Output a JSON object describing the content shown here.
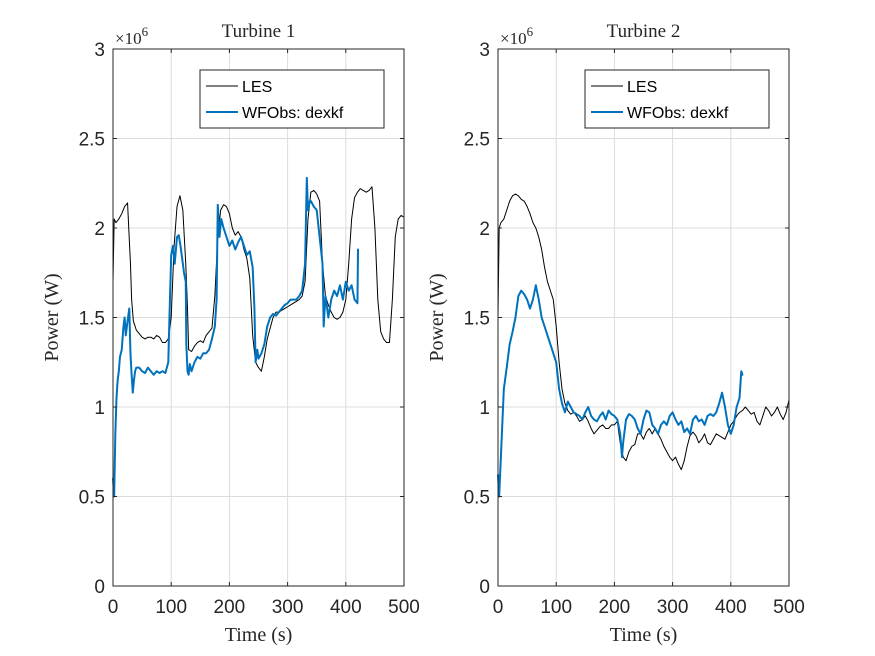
{
  "colors": {
    "les": "#000000",
    "wfobs": "#0072BD",
    "grid": "#dcdcdc",
    "axes": "#262626"
  },
  "chart_data": [
    {
      "type": "line",
      "title": "Turbine 1",
      "xlabel": "Time (s)",
      "ylabel": "Power (W)",
      "y_exponent_label": "×10",
      "y_exponent_power": "6",
      "xlim": [
        0,
        500
      ],
      "ylim": [
        0,
        3
      ],
      "xticks": [
        "0",
        "100",
        "200",
        "300",
        "400",
        "500"
      ],
      "yticks": [
        "0",
        "0.5",
        "1",
        "1.5",
        "2",
        "2.5",
        "3"
      ],
      "grid": true,
      "legend_position": "top-right",
      "series": [
        {
          "name": "LES",
          "x": [
            0,
            2,
            5,
            10,
            15,
            20,
            25,
            30,
            32,
            35,
            40,
            45,
            50,
            55,
            60,
            65,
            70,
            75,
            80,
            85,
            90,
            95,
            100,
            105,
            110,
            115,
            120,
            125,
            128,
            130,
            135,
            140,
            145,
            150,
            155,
            160,
            165,
            170,
            175,
            180,
            185,
            190,
            195,
            200,
            205,
            210,
            215,
            220,
            225,
            230,
            235,
            240,
            245,
            250,
            255,
            260,
            265,
            270,
            275,
            280,
            285,
            290,
            295,
            300,
            305,
            310,
            315,
            320,
            325,
            330,
            335,
            340,
            345,
            350,
            355,
            360,
            365,
            370,
            375,
            380,
            385,
            390,
            395,
            400,
            405,
            410,
            415,
            420,
            425,
            430,
            435,
            440,
            445,
            450,
            455,
            460,
            465,
            470,
            475,
            480,
            485,
            490,
            495,
            500
          ],
          "y": [
            1.7,
            2.05,
            2.03,
            2.05,
            2.08,
            2.12,
            2.14,
            1.8,
            1.6,
            1.48,
            1.43,
            1.41,
            1.39,
            1.38,
            1.39,
            1.39,
            1.38,
            1.4,
            1.39,
            1.36,
            1.36,
            1.38,
            1.5,
            1.9,
            2.12,
            2.18,
            2.1,
            1.8,
            1.55,
            1.32,
            1.31,
            1.34,
            1.36,
            1.37,
            1.36,
            1.4,
            1.42,
            1.44,
            1.62,
            1.95,
            2.1,
            2.13,
            2.12,
            2.08,
            2.0,
            1.96,
            1.98,
            1.95,
            1.88,
            1.83,
            1.72,
            1.4,
            1.25,
            1.22,
            1.2,
            1.28,
            1.38,
            1.44,
            1.5,
            1.53,
            1.53,
            1.54,
            1.55,
            1.56,
            1.57,
            1.58,
            1.59,
            1.6,
            1.62,
            1.7,
            2.05,
            2.2,
            2.21,
            2.19,
            2.15,
            1.8,
            1.62,
            1.57,
            1.53,
            1.5,
            1.49,
            1.5,
            1.53,
            1.6,
            1.8,
            2.05,
            2.17,
            2.2,
            2.22,
            2.21,
            2.2,
            2.21,
            2.23,
            2.0,
            1.6,
            1.42,
            1.38,
            1.36,
            1.36,
            1.6,
            1.95,
            2.05,
            2.07,
            2.06
          ]
        },
        {
          "name": "WFObs: dexkf",
          "x": [
            0,
            2,
            4,
            6,
            8,
            10,
            12,
            15,
            18,
            20,
            22,
            25,
            28,
            30,
            32,
            34,
            36,
            38,
            40,
            45,
            50,
            55,
            60,
            65,
            70,
            75,
            80,
            85,
            90,
            95,
            97,
            100,
            103,
            106,
            110,
            113,
            116,
            120,
            122,
            125,
            126,
            128,
            130,
            132,
            135,
            140,
            145,
            150,
            155,
            160,
            165,
            170,
            175,
            178,
            180,
            183,
            186,
            190,
            195,
            200,
            205,
            210,
            215,
            220,
            225,
            230,
            235,
            240,
            243,
            245,
            248,
            250,
            255,
            260,
            265,
            270,
            275,
            280,
            285,
            290,
            295,
            300,
            305,
            310,
            315,
            320,
            325,
            330,
            333,
            335,
            338,
            340,
            345,
            350,
            355,
            360,
            362,
            365,
            368,
            370,
            375,
            380,
            385,
            390,
            395,
            400,
            405,
            410,
            415,
            420,
            421
          ],
          "y": [
            0.6,
            0.5,
            0.85,
            1.05,
            1.15,
            1.2,
            1.28,
            1.32,
            1.45,
            1.5,
            1.4,
            1.48,
            1.55,
            1.3,
            1.18,
            1.08,
            1.15,
            1.2,
            1.22,
            1.22,
            1.2,
            1.19,
            1.22,
            1.2,
            1.18,
            1.2,
            1.19,
            1.2,
            1.19,
            1.25,
            1.5,
            1.85,
            1.9,
            1.8,
            1.95,
            1.96,
            1.9,
            1.8,
            1.75,
            1.7,
            1.35,
            1.2,
            1.18,
            1.24,
            1.2,
            1.25,
            1.28,
            1.27,
            1.3,
            1.3,
            1.32,
            1.38,
            1.45,
            1.6,
            2.13,
            1.95,
            2.05,
            2.0,
            1.95,
            1.9,
            1.93,
            1.88,
            1.92,
            1.95,
            1.9,
            1.85,
            1.87,
            1.78,
            1.55,
            1.25,
            1.32,
            1.27,
            1.3,
            1.35,
            1.45,
            1.5,
            1.52,
            1.51,
            1.53,
            1.55,
            1.57,
            1.58,
            1.6,
            1.6,
            1.6,
            1.62,
            1.65,
            1.8,
            2.28,
            2.1,
            2.15,
            2.15,
            2.12,
            2.1,
            1.95,
            1.8,
            1.45,
            1.62,
            1.55,
            1.5,
            1.6,
            1.65,
            1.62,
            1.68,
            1.6,
            1.7,
            1.65,
            1.68,
            1.6,
            1.58,
            1.88
          ]
        }
      ]
    },
    {
      "type": "line",
      "title": "Turbine 2",
      "xlabel": "Time (s)",
      "ylabel": "Power (W)",
      "y_exponent_label": "×10",
      "y_exponent_power": "6",
      "xlim": [
        0,
        500
      ],
      "ylim": [
        0,
        3
      ],
      "xticks": [
        "0",
        "100",
        "200",
        "300",
        "400",
        "500"
      ],
      "yticks": [
        "0",
        "0.5",
        "1",
        "1.5",
        "2",
        "2.5",
        "3"
      ],
      "grid": true,
      "legend_position": "top-right",
      "series": [
        {
          "name": "LES",
          "x": [
            0,
            2,
            5,
            10,
            15,
            20,
            25,
            30,
            35,
            40,
            45,
            50,
            55,
            60,
            65,
            70,
            75,
            80,
            85,
            90,
            95,
            100,
            105,
            110,
            115,
            120,
            125,
            130,
            135,
            140,
            145,
            150,
            155,
            160,
            165,
            170,
            175,
            180,
            185,
            190,
            195,
            200,
            205,
            210,
            215,
            220,
            225,
            230,
            235,
            240,
            245,
            250,
            255,
            260,
            265,
            270,
            275,
            280,
            285,
            290,
            295,
            300,
            305,
            310,
            315,
            320,
            325,
            330,
            335,
            340,
            345,
            350,
            355,
            360,
            365,
            370,
            375,
            380,
            385,
            390,
            395,
            400,
            405,
            410,
            415,
            420,
            425,
            430,
            435,
            440,
            445,
            450,
            455,
            460,
            465,
            470,
            475,
            480,
            485,
            490,
            495,
            500
          ],
          "y": [
            1.5,
            2.0,
            2.03,
            2.05,
            2.1,
            2.15,
            2.18,
            2.19,
            2.18,
            2.16,
            2.15,
            2.12,
            2.08,
            2.03,
            2.0,
            1.95,
            1.88,
            1.78,
            1.7,
            1.65,
            1.6,
            1.45,
            1.25,
            1.1,
            1.02,
            0.98,
            0.96,
            0.97,
            0.95,
            0.92,
            0.93,
            0.95,
            0.92,
            0.88,
            0.85,
            0.87,
            0.89,
            0.9,
            0.88,
            0.88,
            0.9,
            0.9,
            0.92,
            0.8,
            0.72,
            0.7,
            0.75,
            0.78,
            0.79,
            0.85,
            0.85,
            0.82,
            0.86,
            0.88,
            0.85,
            0.88,
            0.85,
            0.82,
            0.78,
            0.75,
            0.72,
            0.7,
            0.72,
            0.68,
            0.65,
            0.7,
            0.78,
            0.84,
            0.86,
            0.84,
            0.8,
            0.82,
            0.85,
            0.8,
            0.79,
            0.82,
            0.85,
            0.84,
            0.83,
            0.82,
            0.86,
            0.9,
            0.92,
            0.95,
            0.97,
            0.98,
            1.0,
            0.98,
            0.96,
            0.97,
            0.92,
            0.9,
            0.95,
            1.0,
            0.98,
            0.95,
            0.97,
            1.0,
            0.96,
            0.93,
            0.97,
            1.04
          ]
        },
        {
          "name": "WFObs: dexkf",
          "x": [
            0,
            2,
            4,
            6,
            8,
            10,
            15,
            20,
            25,
            30,
            35,
            40,
            45,
            50,
            55,
            60,
            65,
            70,
            75,
            80,
            85,
            90,
            95,
            100,
            105,
            110,
            115,
            120,
            125,
            130,
            135,
            140,
            145,
            150,
            155,
            160,
            165,
            170,
            175,
            180,
            185,
            190,
            195,
            200,
            205,
            210,
            213,
            215,
            220,
            225,
            230,
            235,
            240,
            245,
            250,
            255,
            260,
            265,
            270,
            275,
            280,
            285,
            290,
            295,
            300,
            305,
            310,
            315,
            320,
            325,
            330,
            335,
            340,
            345,
            350,
            355,
            360,
            365,
            370,
            375,
            380,
            385,
            390,
            395,
            400,
            405,
            410,
            415,
            418,
            420
          ],
          "y": [
            0.62,
            0.5,
            0.65,
            0.8,
            0.95,
            1.1,
            1.22,
            1.35,
            1.42,
            1.5,
            1.62,
            1.65,
            1.63,
            1.6,
            1.55,
            1.6,
            1.68,
            1.6,
            1.5,
            1.45,
            1.4,
            1.35,
            1.3,
            1.25,
            1.1,
            1.02,
            0.97,
            1.03,
            1.0,
            0.97,
            0.96,
            0.95,
            0.93,
            0.97,
            1.0,
            0.95,
            0.93,
            0.92,
            0.95,
            0.97,
            0.93,
            0.98,
            0.96,
            0.95,
            0.93,
            0.85,
            0.72,
            0.8,
            0.93,
            0.96,
            0.95,
            0.93,
            0.88,
            0.85,
            0.93,
            0.98,
            0.97,
            0.9,
            0.88,
            0.85,
            0.9,
            0.92,
            0.9,
            0.95,
            0.97,
            0.93,
            0.9,
            0.92,
            0.86,
            0.88,
            0.85,
            0.93,
            0.95,
            0.92,
            0.93,
            0.9,
            0.95,
            0.96,
            0.95,
            0.97,
            1.02,
            1.08,
            1.0,
            0.9,
            0.85,
            0.9,
            1.0,
            1.05,
            1.2,
            1.18
          ]
        }
      ]
    }
  ]
}
